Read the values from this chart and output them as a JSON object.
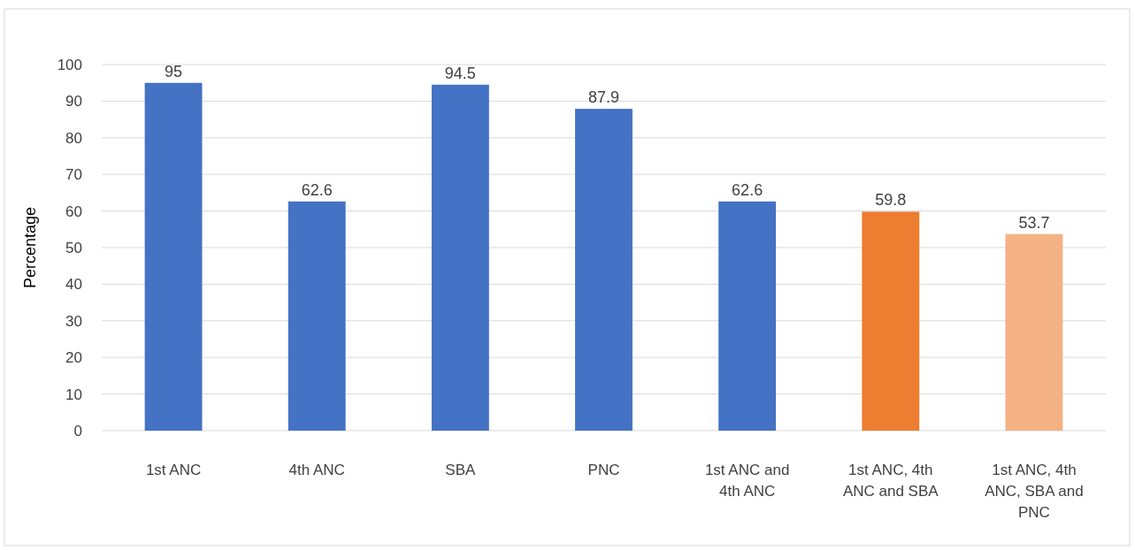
{
  "chart_data": {
    "type": "bar",
    "ylabel": "Percentage",
    "categories": [
      "1st ANC",
      "4th ANC",
      "SBA",
      "PNC",
      "1st ANC and 4th ANC",
      "1st ANC, 4th ANC and SBA",
      "1st ANC, 4th ANC, SBA and PNC"
    ],
    "values": [
      95,
      62.6,
      94.5,
      87.9,
      62.6,
      59.8,
      53.7
    ],
    "colors": [
      "#4472c4",
      "#4472c4",
      "#4472c4",
      "#4472c4",
      "#4472c4",
      "#ed7d31",
      "#f4b183"
    ],
    "ylim": [
      0,
      100
    ],
    "yticks": [
      0,
      10,
      20,
      30,
      40,
      50,
      60,
      70,
      80,
      90,
      100
    ],
    "grid": "y",
    "data_labels": true
  }
}
